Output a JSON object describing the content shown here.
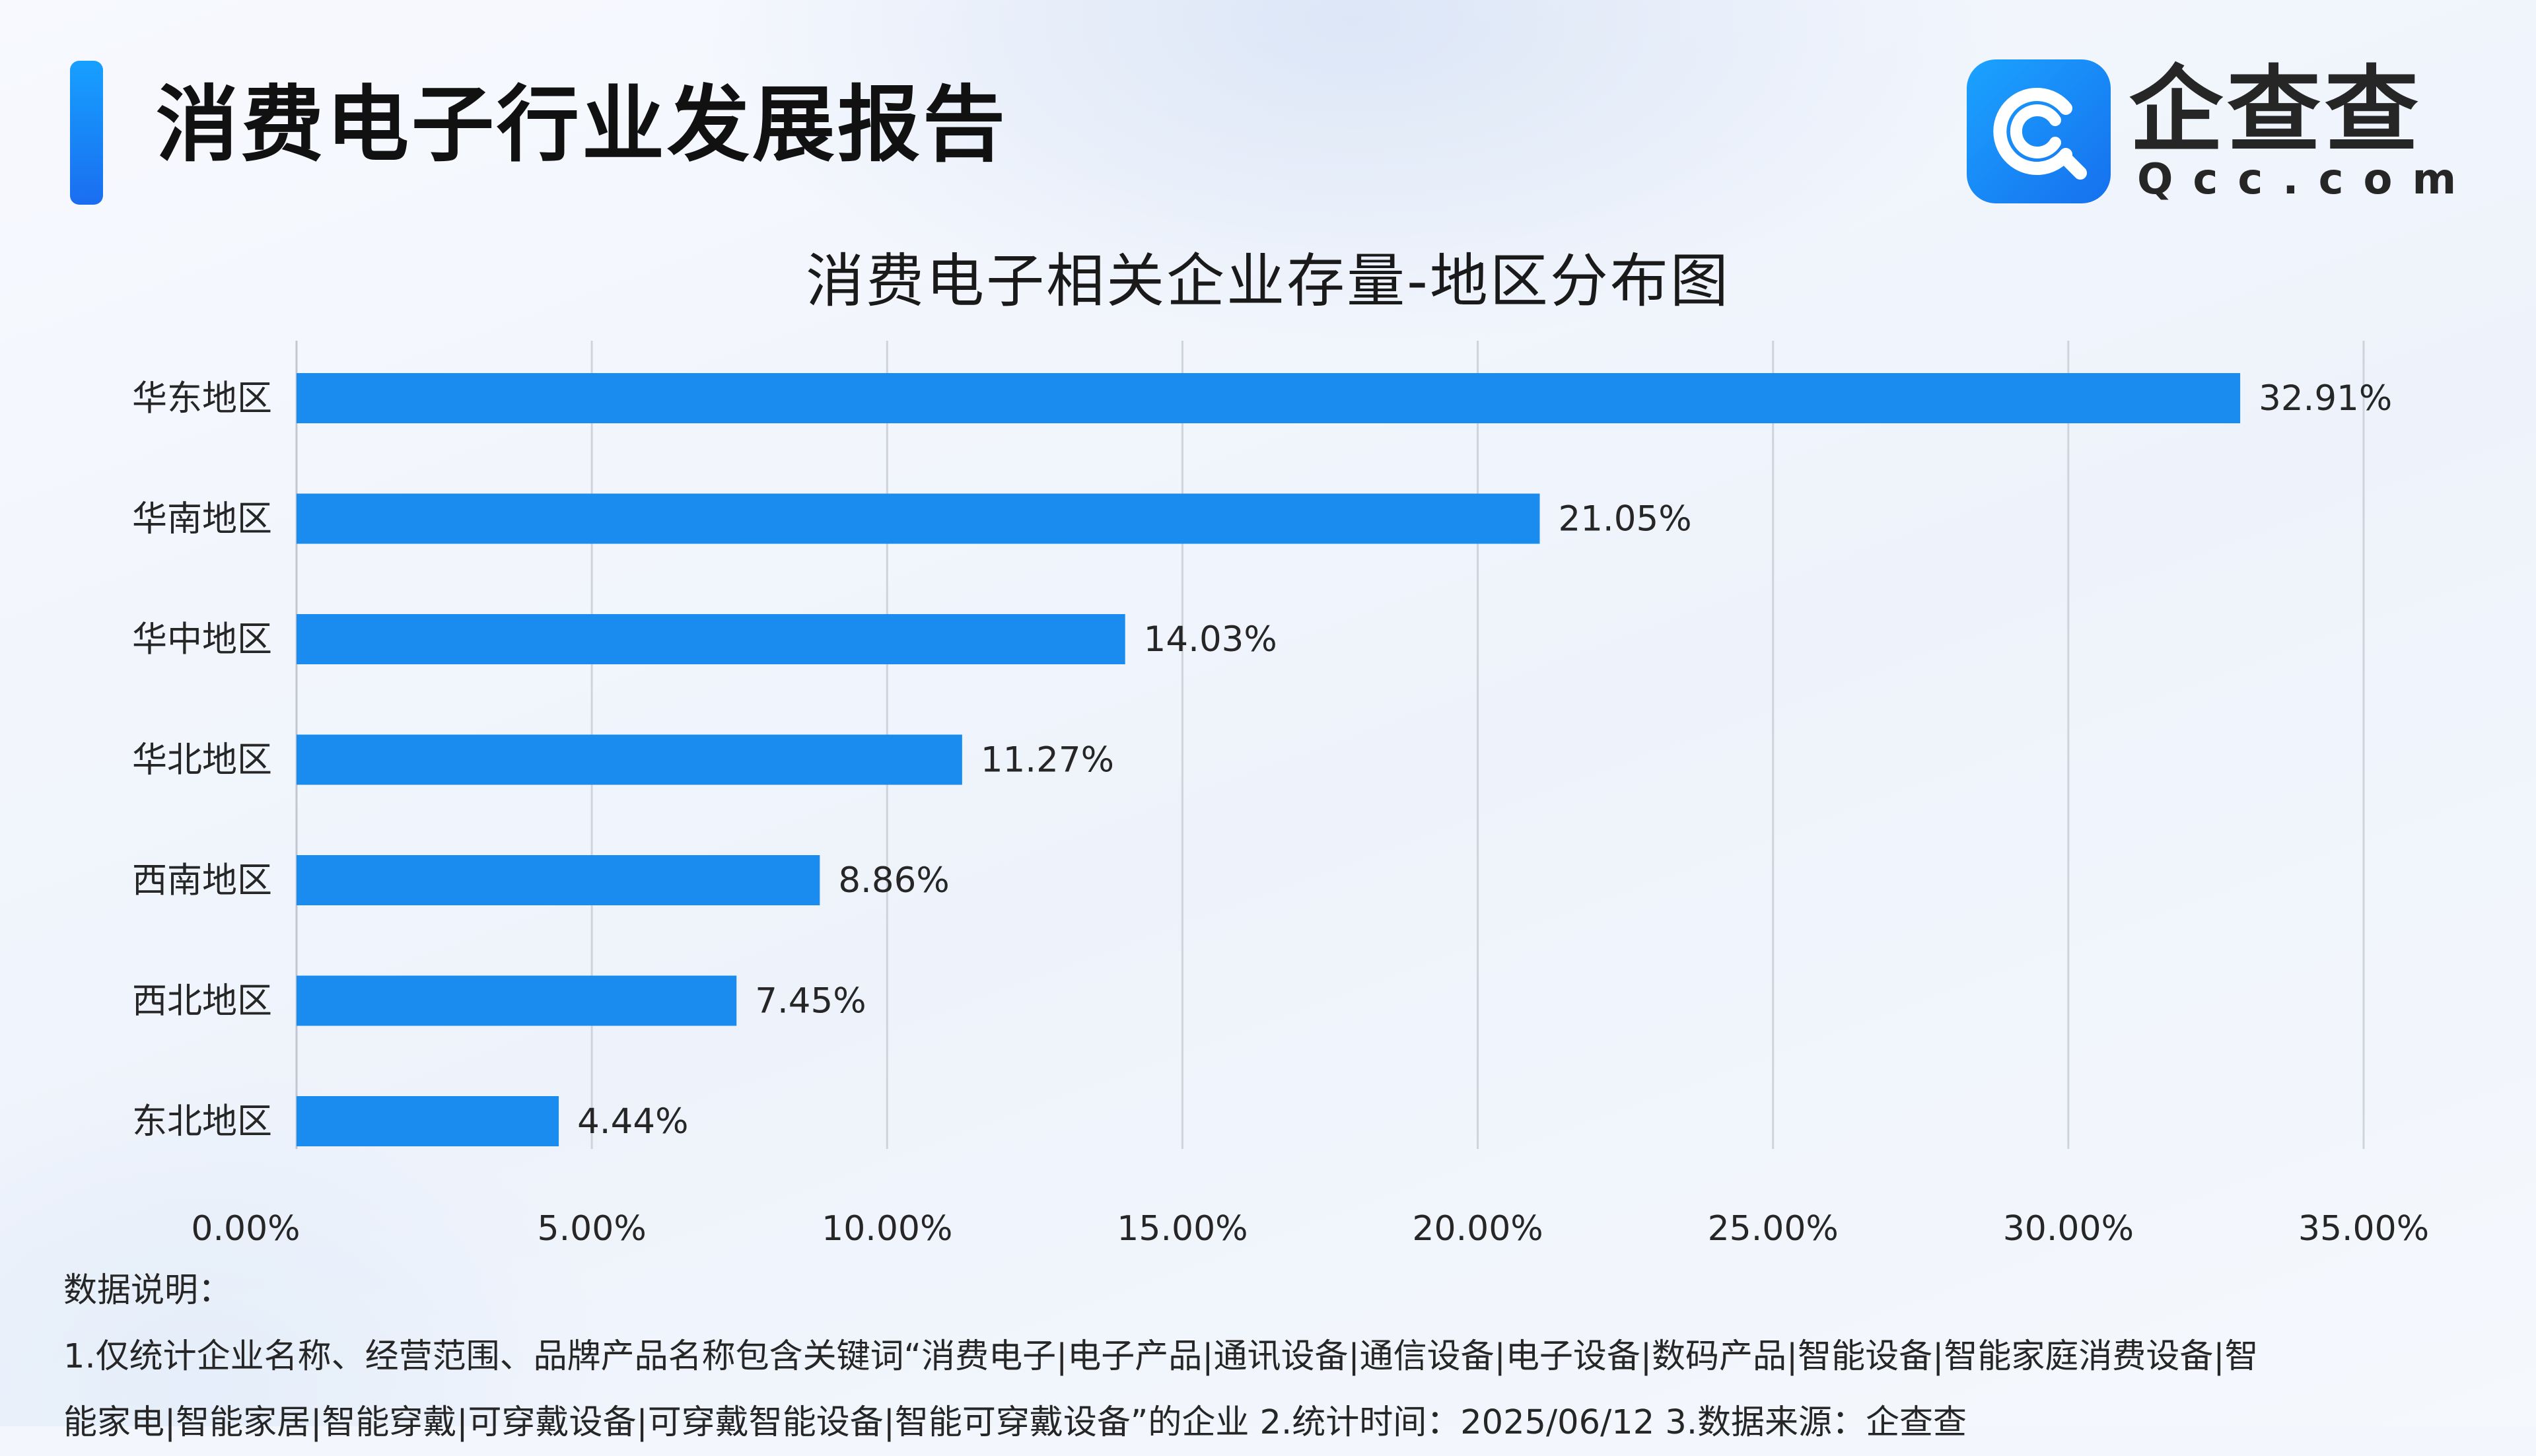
{
  "header": {
    "report_title": "消费电子行业发展报告",
    "brand_name": "企查查",
    "brand_domain": "Qcc.com",
    "brand_color": "#1890f5"
  },
  "chart_data": {
    "type": "bar",
    "orientation": "horizontal",
    "title": "消费电子相关企业存量-地区分布图",
    "categories": [
      "华东地区",
      "华南地区",
      "华中地区",
      "华北地区",
      "西南地区",
      "西北地区",
      "东北地区"
    ],
    "values": [
      32.91,
      21.05,
      14.03,
      11.27,
      8.86,
      7.45,
      4.44
    ],
    "value_labels": [
      "32.91%",
      "21.05%",
      "14.03%",
      "11.27%",
      "8.86%",
      "7.45%",
      "4.44%"
    ],
    "xlim": [
      0,
      35
    ],
    "xticks": [
      0,
      5,
      10,
      15,
      20,
      25,
      30,
      35
    ],
    "xtick_labels": [
      "0.00%",
      "5.00%",
      "10.00%",
      "15.00%",
      "20.00%",
      "25.00%",
      "30.00%",
      "35.00%"
    ],
    "grid": "vertical",
    "bar_color": "#1a8cf0"
  },
  "notes": {
    "prefix": "数据说明：",
    "line2": "1.仅统计企业名称、经营范围、品牌产品名称包含关键词“消费电子|电子产品|通讯设备|通信设备|电子设备|数码产品|智能设备|智能家庭消费设备|智",
    "line3": "能家电|智能家居|智能穿戴|可穿戴设备|可穿戴智能设备|智能可穿戴设备”的企业   2.统计时间：2025/06/12   3.数据来源：企查查"
  }
}
